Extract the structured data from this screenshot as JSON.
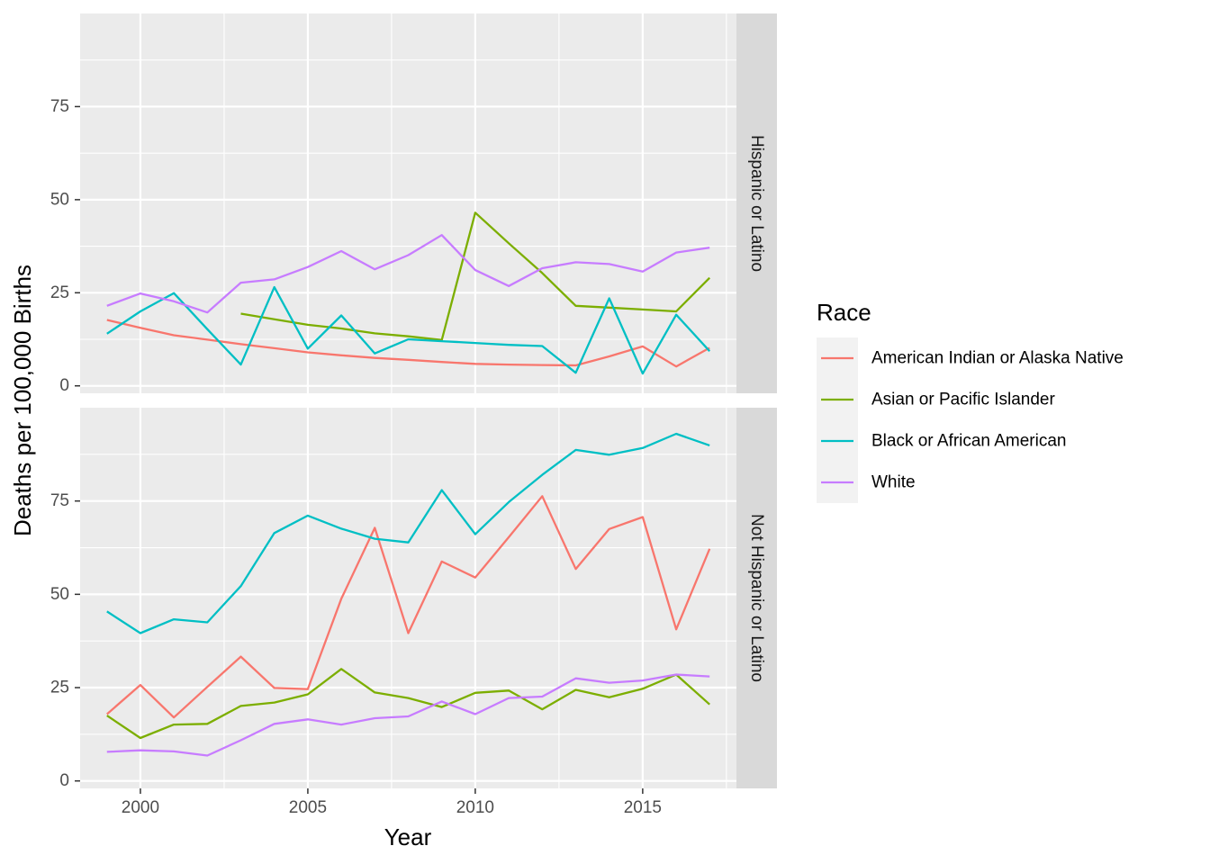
{
  "chart_data": {
    "type": "line",
    "xlabel": "Year",
    "ylabel": "Deaths per 100,000 Births",
    "xlim": [
      1998.2,
      2017.8
    ],
    "ylim": [
      -2,
      100
    ],
    "x_ticks": [
      2000,
      2005,
      2010,
      2015
    ],
    "x_tick_labels": [
      "2000",
      "2005",
      "2010",
      "2015"
    ],
    "y_ticks": [
      0,
      25,
      50,
      75
    ],
    "y_tick_labels": [
      "0",
      "25",
      "50",
      "75"
    ],
    "legend": {
      "title": "Race",
      "position": "right",
      "entries": [
        {
          "name": "American Indian or Alaska Native",
          "color": "#F8766D"
        },
        {
          "name": "Asian or Pacific Islander",
          "color": "#7CAE00"
        },
        {
          "name": "Black or African American",
          "color": "#00BFC4"
        },
        {
          "name": "White",
          "color": "#C77CFF"
        }
      ]
    },
    "colors": {
      "panel_bg": "#EBEBEB",
      "grid": "#FFFFFF",
      "strip_bg": "#D9D9D9"
    },
    "facets": [
      {
        "label": "Hispanic or Latino",
        "series": [
          {
            "name": "American Indian or Alaska Native",
            "x": [
              1999,
              2000,
              2001,
              2002,
              2003,
              2004,
              2005,
              2006,
              2007,
              2008,
              2009,
              2010,
              2011,
              2012,
              2013,
              2014,
              2015,
              2016,
              2017
            ],
            "y": [
              17.7,
              15.6,
              13.6,
              12.4,
              11.2,
              10.1,
              9.0,
              8.2,
              7.5,
              7.0,
              6.4,
              5.9,
              5.7,
              5.6,
              5.5,
              7.9,
              10.6,
              5.2,
              10.2
            ]
          },
          {
            "name": "Asian or Pacific Islander",
            "x": [
              2003,
              2004,
              2005,
              2006,
              2007,
              2008,
              2009,
              2010,
              2011,
              2012,
              2013,
              2014,
              2015,
              2016,
              2017
            ],
            "y": [
              19.4,
              17.9,
              16.4,
              15.4,
              14.1,
              13.3,
              12.3,
              46.5,
              38.3,
              30.3,
              21.5,
              21.0,
              20.5,
              20.0,
              29.0
            ]
          },
          {
            "name": "Black or African American",
            "x": [
              1999,
              2000,
              2001,
              2002,
              2003,
              2004,
              2005,
              2006,
              2007,
              2008,
              2009,
              2010,
              2011,
              2012,
              2013,
              2014,
              2015,
              2016,
              2017
            ],
            "y": [
              14.0,
              20.0,
              24.9,
              15.2,
              5.7,
              26.5,
              10.0,
              18.9,
              8.7,
              12.5,
              12.0,
              11.5,
              11.0,
              10.7,
              3.5,
              23.5,
              3.3,
              19.1,
              9.3
            ]
          },
          {
            "name": "White",
            "x": [
              1999,
              2000,
              2001,
              2002,
              2003,
              2004,
              2005,
              2006,
              2007,
              2008,
              2009,
              2010,
              2011,
              2012,
              2013,
              2014,
              2015,
              2016,
              2017
            ],
            "y": [
              21.5,
              24.8,
              22.7,
              19.7,
              27.7,
              28.6,
              31.9,
              36.2,
              31.3,
              35.1,
              40.5,
              31.1,
              26.8,
              31.6,
              33.2,
              32.7,
              30.7,
              35.8,
              37.1
            ]
          }
        ]
      },
      {
        "label": "Not Hispanic or Latino",
        "series": [
          {
            "name": "American Indian or Alaska Native",
            "x": [
              1999,
              2000,
              2001,
              2002,
              2003,
              2004,
              2005,
              2006,
              2007,
              2008,
              2009,
              2010,
              2011,
              2012,
              2013,
              2014,
              2015,
              2016,
              2017
            ],
            "y": [
              17.9,
              25.7,
              17.0,
              25.2,
              33.3,
              24.9,
              24.6,
              48.8,
              67.8,
              39.6,
              58.8,
              54.5,
              65.3,
              76.3,
              56.8,
              67.5,
              70.7,
              40.6,
              62.2
            ]
          },
          {
            "name": "Asian or Pacific Islander",
            "x": [
              1999,
              2000,
              2001,
              2002,
              2003,
              2004,
              2005,
              2006,
              2007,
              2008,
              2009,
              2010,
              2011,
              2012,
              2013,
              2014,
              2015,
              2016,
              2017
            ],
            "y": [
              17.5,
              11.5,
              15.1,
              15.3,
              20.1,
              21.0,
              23.2,
              30.0,
              23.7,
              22.2,
              19.8,
              23.6,
              24.2,
              19.2,
              24.4,
              22.4,
              24.7,
              28.5,
              20.5
            ]
          },
          {
            "name": "Black or African American",
            "x": [
              1999,
              2000,
              2001,
              2002,
              2003,
              2004,
              2005,
              2006,
              2007,
              2008,
              2009,
              2010,
              2011,
              2012,
              2013,
              2014,
              2015,
              2016,
              2017
            ],
            "y": [
              45.4,
              39.6,
              43.3,
              42.5,
              52.2,
              66.4,
              71.1,
              67.6,
              64.9,
              63.9,
              77.9,
              66.1,
              74.7,
              82.0,
              88.7,
              87.4,
              89.2,
              93.0,
              89.9
            ]
          },
          {
            "name": "White",
            "x": [
              1999,
              2000,
              2001,
              2002,
              2003,
              2004,
              2005,
              2006,
              2007,
              2008,
              2009,
              2010,
              2011,
              2012,
              2013,
              2014,
              2015,
              2016,
              2017
            ],
            "y": [
              7.8,
              8.2,
              7.9,
              6.8,
              10.9,
              15.3,
              16.5,
              15.1,
              16.8,
              17.3,
              21.3,
              17.9,
              22.2,
              22.6,
              27.5,
              26.3,
              26.9,
              28.5,
              28.0
            ]
          }
        ]
      }
    ]
  }
}
